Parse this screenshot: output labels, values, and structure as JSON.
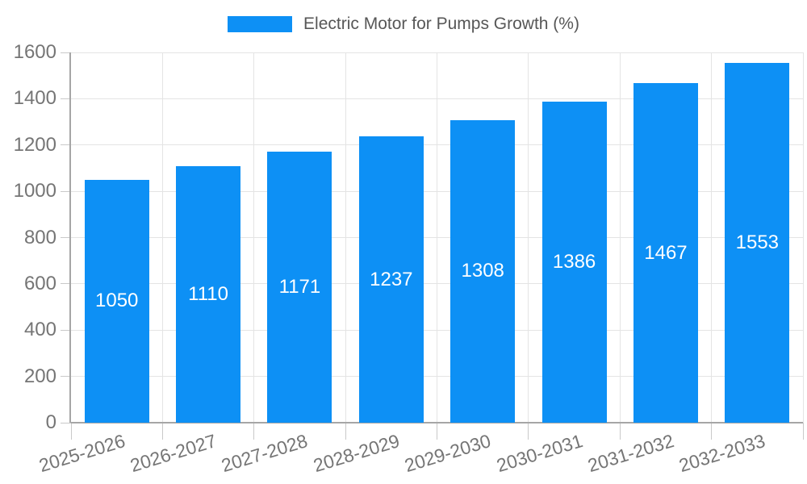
{
  "legend": {
    "label": "Electric Motor for Pumps Growth (%)"
  },
  "chart_data": {
    "type": "bar",
    "title": "Electric Motor for Pumps Growth (%)",
    "categories": [
      "2025-2026",
      "2026-2027",
      "2027-2028",
      "2028-2029",
      "2029-2030",
      "2030-2031",
      "2031-2032",
      "2032-2033"
    ],
    "values": [
      1050,
      1110,
      1171,
      1237,
      1308,
      1386,
      1467,
      1553
    ],
    "value_labels": [
      "1050",
      "1110",
      "1171",
      "1237",
      "1308",
      "1386",
      "1467",
      "1553"
    ],
    "xlabel": "",
    "ylabel": "",
    "ylim": [
      0,
      1600
    ],
    "yticks": [
      0,
      200,
      400,
      600,
      800,
      1000,
      1200,
      1400,
      1600
    ],
    "grid": true,
    "legend_position": "top-center"
  },
  "colors": {
    "background": "#ffffff",
    "bar": "#0d90f5",
    "grid": "#e4e4e4",
    "axis": "#a6a6a6",
    "tick_mark": "#c9c9c9",
    "axis_text": "#757575",
    "title_text": "#575757",
    "value_label": "#ffffff"
  }
}
